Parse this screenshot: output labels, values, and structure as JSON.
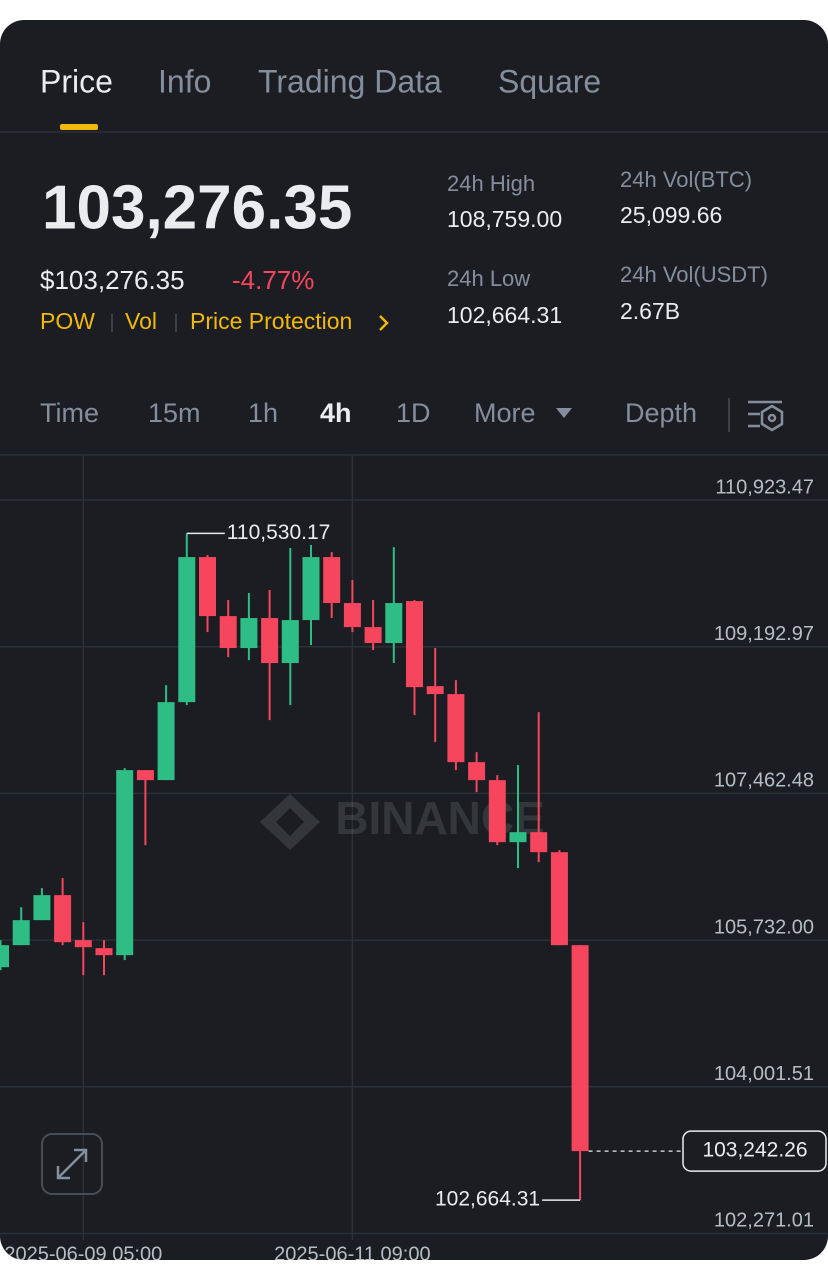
{
  "tabs": [
    "Price",
    "Info",
    "Trading Data",
    "Square"
  ],
  "header": {
    "price": "103,276.35",
    "price_usd": "$103,276.35",
    "change": "-4.77%",
    "tags": [
      "POW",
      "Vol",
      "Price Protection"
    ]
  },
  "stats": [
    {
      "label": "24h High",
      "value": "108,759.00"
    },
    {
      "label": "24h Low",
      "value": "102,664.31"
    },
    {
      "label": "24h Vol(BTC)",
      "value": "25,099.66"
    },
    {
      "label": "24h Vol(USDT)",
      "value": "2.67B"
    }
  ],
  "intervals": [
    "Time",
    "15m",
    "1h",
    "4h",
    "1D",
    "More"
  ],
  "depth": "Depth",
  "chart_data": {
    "type": "candlestick",
    "categories": [
      null,
      null,
      null,
      null,
      "2025-06-09 05:00",
      null,
      null,
      null,
      null,
      null,
      null,
      null,
      null,
      null,
      null,
      null,
      null,
      "2025-06-11 09:00",
      null,
      null,
      null,
      null,
      null,
      null,
      null,
      null,
      null,
      null,
      null
    ],
    "open": [
      105412,
      105672,
      105967,
      106262,
      105731,
      105637,
      105554,
      107737,
      107619,
      108539,
      110250,
      109554,
      109177,
      109531,
      109000,
      109507,
      110250,
      109708,
      109424,
      109236,
      109731,
      108728,
      108634,
      107831,
      107619,
      106887,
      107005,
      106769,
      105672
    ],
    "high": [
      105731,
      106120,
      106345,
      106463,
      105943,
      105731,
      107761,
      107737,
      108740,
      110530.17,
      110274,
      109743,
      109826,
      109861,
      110357,
      110392,
      110309,
      109979,
      109743,
      110368,
      109743,
      109177,
      108799,
      107949,
      107678,
      107796,
      108421,
      106793,
      105672
    ],
    "low": [
      105377,
      105672,
      105967,
      105672,
      105318,
      105318,
      105495,
      106852,
      107619,
      108504,
      109365,
      109070,
      109035,
      108327,
      108504,
      109212,
      109531,
      109365,
      109153,
      109000,
      108386,
      108067,
      107737,
      107477,
      106852,
      106581,
      106651,
      105672,
      102664.31
    ],
    "close": [
      105672,
      105967,
      106262,
      105707,
      105648,
      105554,
      107737,
      107619,
      108539,
      110250,
      109554,
      109177,
      109531,
      109000,
      109507,
      110250,
      109708,
      109424,
      109236,
      109708,
      108716,
      108634,
      107831,
      107619,
      106887,
      107005,
      106769,
      105672,
      103242.26
    ],
    "up_color": "#2ebd85",
    "down_color": "#f6465d",
    "ylim": [
      102193.7,
      111454.3
    ],
    "yticks": [
      {
        "value": 110923.47,
        "label": "110,923.47"
      },
      {
        "value": 109192.97,
        "label": "109,192.97"
      },
      {
        "value": 107462.48,
        "label": "107,462.48"
      },
      {
        "value": 105732.0,
        "label": "105,732.00"
      },
      {
        "value": 104001.51,
        "label": "104,001.51"
      },
      {
        "value": 102271.01,
        "label": "102,271.01"
      }
    ],
    "grid": true,
    "watermark": "BINANCE",
    "high_label": "110,530.17",
    "low_label": "102,664.31",
    "last_label": "103,242.26"
  }
}
